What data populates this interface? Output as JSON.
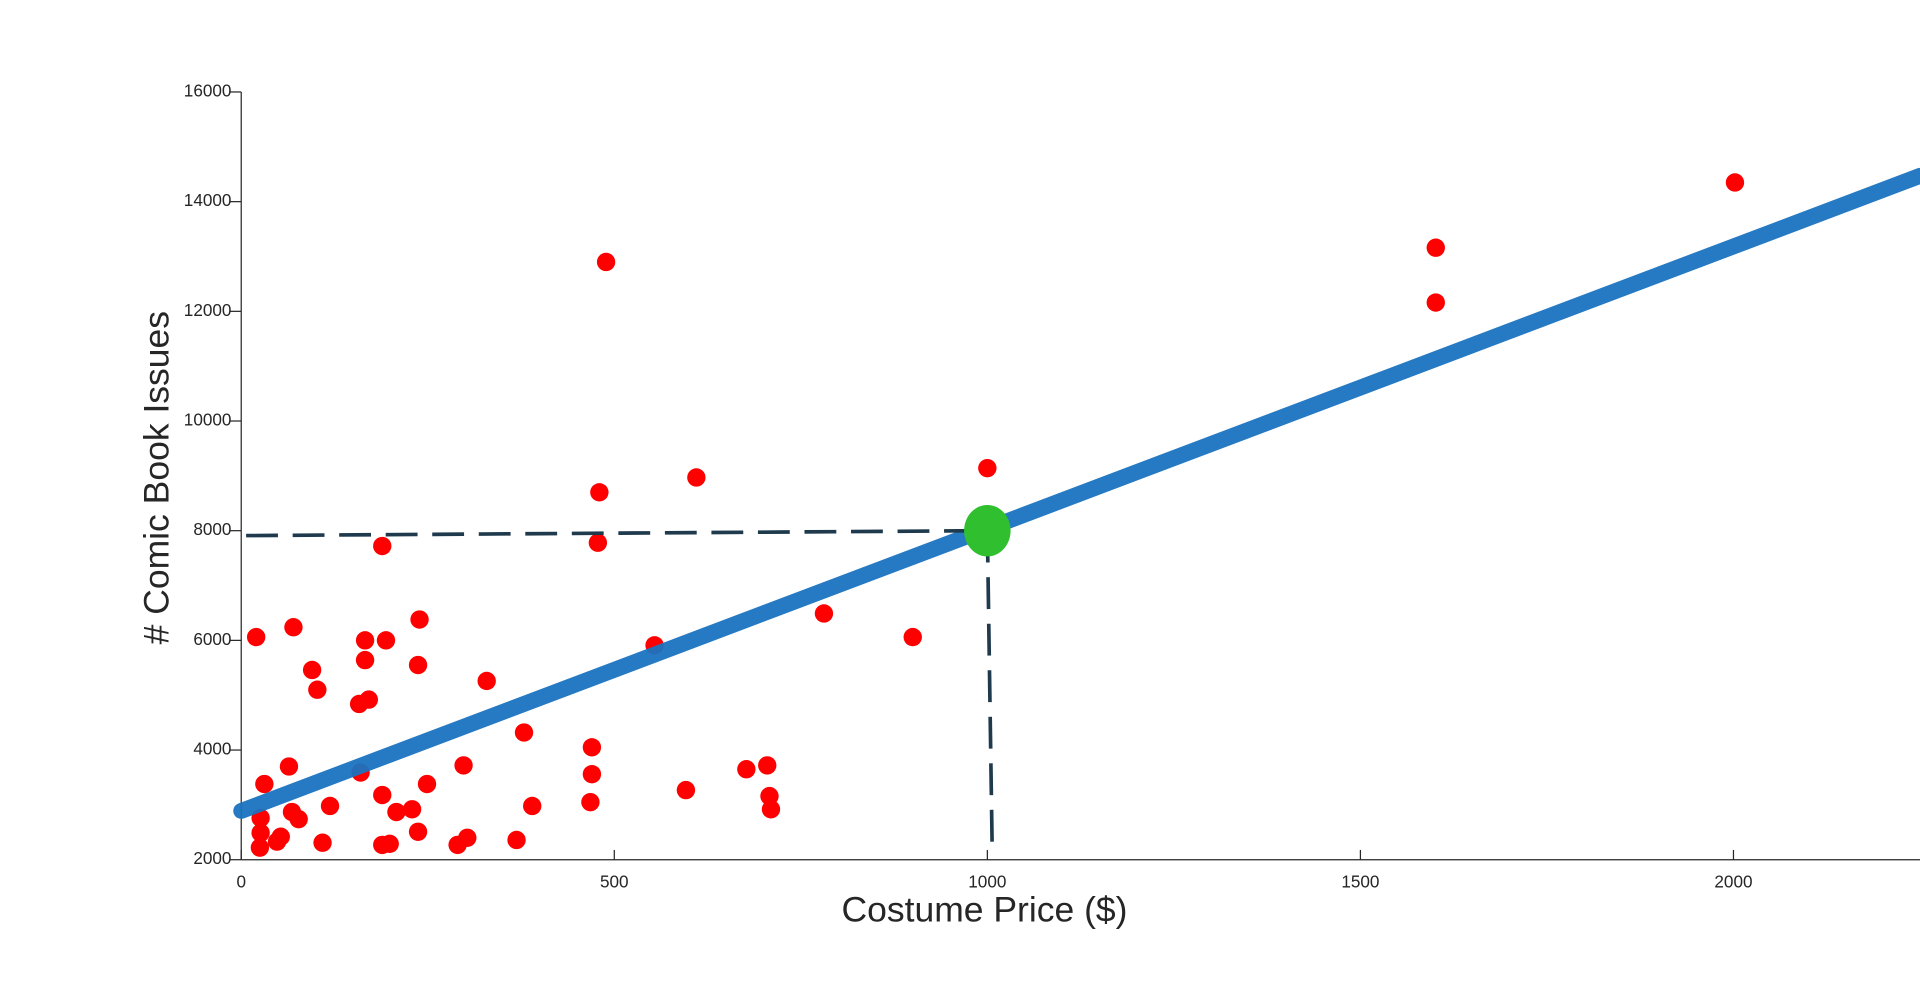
{
  "chart_data": {
    "type": "scatter",
    "x_label": "Costume Price ($)",
    "y_label": "# Comic Book Issues",
    "xlim": [
      0,
      2250
    ],
    "ylim": [
      2000,
      16000
    ],
    "xticks": [
      0,
      500,
      1000,
      1500,
      2000
    ],
    "yticks": [
      2000,
      4000,
      6000,
      8000,
      10000,
      12000,
      14000,
      16000
    ],
    "points": {
      "color": "#ff0000",
      "x": [
        20,
        70,
        95,
        102,
        166,
        194,
        166,
        171,
        158,
        239,
        237,
        329,
        189,
        478,
        480,
        489,
        610,
        554,
        781,
        900,
        1000,
        1601,
        1601,
        2002,
        64,
        31,
        160,
        189,
        249,
        298,
        379,
        470,
        470,
        468,
        390,
        596,
        677,
        705,
        708,
        710,
        119,
        68,
        77,
        26,
        26,
        25,
        53,
        48,
        109,
        189,
        199,
        208,
        229,
        237,
        290,
        303,
        369
      ],
      "y": [
        6060,
        6240,
        5460,
        5100,
        6000,
        6000,
        5640,
        4920,
        4840,
        6380,
        5550,
        5260,
        7720,
        7780,
        8700,
        12900,
        8970,
        5910,
        6490,
        6060,
        9140,
        12160,
        13160,
        14350,
        3700,
        3380,
        3590,
        3180,
        3380,
        3720,
        4320,
        4050,
        3560,
        3050,
        2980,
        3270,
        3650,
        3720,
        3160,
        2920,
        2980,
        2870,
        2740,
        2760,
        2490,
        2220,
        2420,
        2330,
        2310,
        2270,
        2290,
        2870,
        2920,
        2510,
        2270,
        2400,
        2360
      ]
    },
    "fit_line": {
      "color": "#1a73c0",
      "x": [
        0,
        2250
      ],
      "y": [
        2890,
        14470
      ]
    },
    "highlight": {
      "color": "#2fbf2f",
      "x": 1000,
      "y": 8000
    }
  }
}
